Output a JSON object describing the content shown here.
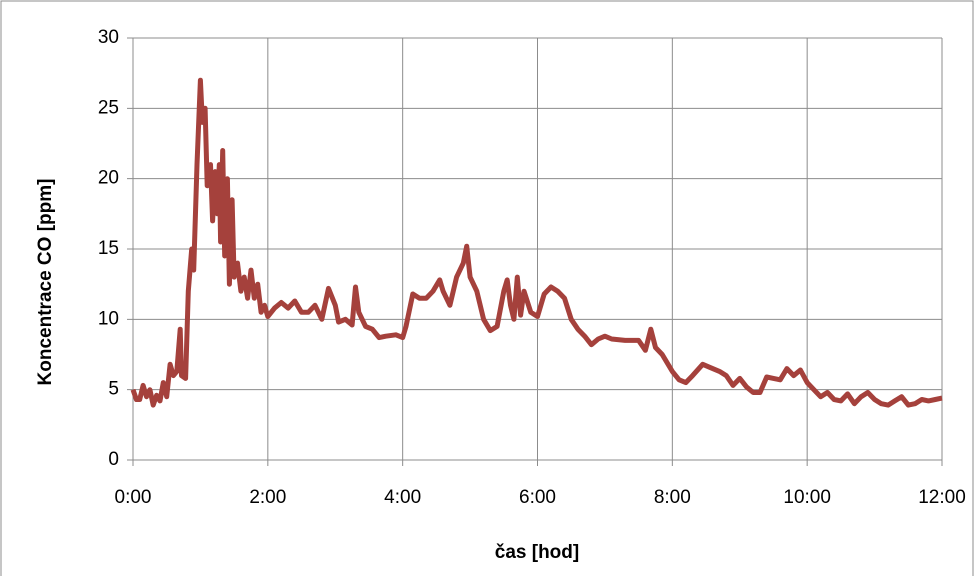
{
  "chart_data": {
    "type": "line",
    "xlabel": "čas [hod]",
    "ylabel": "Koncentrace CO  [ppm]",
    "color": "#a5413c",
    "grid": true,
    "xlim": [
      0,
      12
    ],
    "xticks": [
      {
        "value": 0,
        "label": "0:00"
      },
      {
        "value": 2,
        "label": "2:00"
      },
      {
        "value": 4,
        "label": "4:00"
      },
      {
        "value": 6,
        "label": "6:00"
      },
      {
        "value": 8,
        "label": "8:00"
      },
      {
        "value": 10,
        "label": "10:00"
      },
      {
        "value": 12,
        "label": "12:00"
      }
    ],
    "ylim": [
      0,
      30
    ],
    "yticks": [
      0,
      5,
      10,
      15,
      20,
      25,
      30
    ],
    "x": [
      0,
      0.05,
      0.1,
      0.15,
      0.2,
      0.25,
      0.3,
      0.35,
      0.4,
      0.45,
      0.5,
      0.55,
      0.6,
      0.65,
      0.7,
      0.72,
      0.78,
      0.82,
      0.87,
      0.9,
      0.95,
      1,
      1.03,
      1.07,
      1.1,
      1.15,
      1.18,
      1.22,
      1.25,
      1.28,
      1.3,
      1.33,
      1.36,
      1.4,
      1.43,
      1.47,
      1.5,
      1.55,
      1.6,
      1.65,
      1.7,
      1.75,
      1.8,
      1.85,
      1.9,
      1.95,
      2,
      2.1,
      2.2,
      2.3,
      2.4,
      2.5,
      2.6,
      2.7,
      2.8,
      2.9,
      3,
      3.05,
      3.15,
      3.25,
      3.3,
      3.35,
      3.45,
      3.55,
      3.65,
      3.75,
      3.9,
      4,
      4.05,
      4.15,
      4.25,
      4.35,
      4.45,
      4.55,
      4.6,
      4.7,
      4.8,
      4.9,
      4.95,
      5,
      5.1,
      5.2,
      5.3,
      5.4,
      5.5,
      5.55,
      5.6,
      5.65,
      5.7,
      5.75,
      5.8,
      5.9,
      6,
      6.1,
      6.2,
      6.3,
      6.4,
      6.5,
      6.6,
      6.7,
      6.8,
      6.9,
      7,
      7.1,
      7.3,
      7.5,
      7.6,
      7.68,
      7.75,
      7.85,
      8,
      8.1,
      8.2,
      8.3,
      8.45,
      8.55,
      8.7,
      8.8,
      8.9,
      9,
      9.1,
      9.2,
      9.3,
      9.4,
      9.5,
      9.6,
      9.7,
      9.8,
      9.9,
      10,
      10.1,
      10.2,
      10.3,
      10.4,
      10.5,
      10.6,
      10.7,
      10.8,
      10.9,
      11,
      11.1,
      11.2,
      11.3,
      11.4,
      11.5,
      11.6,
      11.7,
      11.8,
      11.9,
      12
    ],
    "values": [
      5,
      4.3,
      4.3,
      5.3,
      4.5,
      5,
      3.9,
      4.6,
      4.2,
      5.5,
      4.5,
      6.8,
      6,
      6.3,
      9.3,
      6,
      5.8,
      12,
      15,
      13.5,
      21,
      27,
      24,
      25,
      19.5,
      21,
      17,
      20.5,
      17.5,
      21,
      15.5,
      22,
      14.5,
      20,
      12.5,
      18.5,
      13,
      14,
      12,
      13,
      11.5,
      13.5,
      11.5,
      12.5,
      10.5,
      11,
      10.2,
      10.8,
      11.2,
      10.8,
      11.3,
      10.5,
      10.5,
      11,
      10,
      12.2,
      11,
      9.8,
      10,
      9.6,
      12.3,
      10.5,
      9.5,
      9.3,
      8.7,
      8.8,
      8.9,
      8.7,
      9.5,
      11.8,
      11.5,
      11.5,
      12,
      12.8,
      12,
      11,
      13,
      14,
      15.2,
      13,
      12,
      10,
      9.2,
      9.5,
      12,
      12.8,
      11,
      10,
      13,
      10.3,
      12,
      10.5,
      10.2,
      11.8,
      12.3,
      12,
      11.5,
      10,
      9.3,
      8.8,
      8.2,
      8.6,
      8.8,
      8.6,
      8.5,
      8.5,
      7.8,
      9.3,
      8,
      7.5,
      6.3,
      5.7,
      5.5,
      6,
      6.8,
      6.6,
      6.3,
      6,
      5.3,
      5.8,
      5.2,
      4.8,
      4.8,
      5.9,
      5.8,
      5.7,
      6.5,
      6,
      6.4,
      5.5,
      5,
      4.5,
      4.8,
      4.3,
      4.2,
      4.7,
      4,
      4.5,
      4.8,
      4.3,
      4,
      3.9,
      4.2,
      4.5,
      3.9,
      4,
      4.3,
      4.2,
      4.3,
      4.4
    ]
  }
}
